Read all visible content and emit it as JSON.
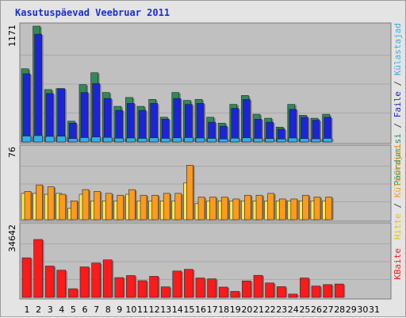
{
  "title": "Kasutuspäevad Veebruar 2011",
  "colors": {
    "background": "#e4e4e4",
    "plot_bg": "#c0c0c0",
    "grid": "#a8a8a8",
    "pages": "#2e8b57",
    "files": "#1c24d8",
    "visits": "#2fb0e8",
    "hits": "#ffe84a",
    "unique_visitors": "#ff9a1c",
    "kbytes": "#ff1a1a",
    "weekend_label": "#2e8b57",
    "title": "#1a2fd0"
  },
  "side_labels": {
    "top": [
      {
        "text": "Pöördumisi",
        "color": "#2e8b57"
      },
      {
        "text": " / ",
        "color": "#444444"
      },
      {
        "text": "Faile",
        "color": "#1c24d8"
      },
      {
        "text": " / ",
        "color": "#444444"
      },
      {
        "text": "Külastajad",
        "color": "#2fb0e8"
      }
    ],
    "middle": [
      {
        "text": "Hitte",
        "color": "#e8c400"
      },
      {
        "text": " / ",
        "color": "#444444"
      },
      {
        "text": "Külastajad",
        "color": "#ff9a1c"
      }
    ],
    "bottom": [
      {
        "text": "KBaite",
        "color": "#ff1a1a"
      }
    ]
  },
  "chart_data": {
    "type": "bar",
    "title": "Kasutuspäevad Veebruar 2011",
    "categories": [
      "1",
      "2",
      "3",
      "4",
      "5",
      "6",
      "7",
      "8",
      "9",
      "10",
      "11",
      "12",
      "13",
      "14",
      "15",
      "16",
      "17",
      "18",
      "19",
      "20",
      "21",
      "22",
      "23",
      "24",
      "25",
      "26",
      "27",
      "28",
      "29",
      "30",
      "31"
    ],
    "weekend_days": [
      "5",
      "6",
      "12",
      "13",
      "19",
      "20",
      "26",
      "27"
    ],
    "panels": [
      {
        "name": "top",
        "ymax": 1171,
        "ymax_label": "1171",
        "series": [
          {
            "name": "Pöördumisi",
            "values": [
              740,
              1171,
              530,
              540,
              210,
              580,
              700,
              500,
              360,
              450,
              360,
              430,
              250,
              500,
              420,
              430,
              250,
              190,
              380,
              470,
              280,
              240,
              150,
              380,
              270,
              240,
              280,
              0,
              0,
              0,
              0
            ]
          },
          {
            "name": "Faile",
            "values": [
              690,
              1090,
              490,
              540,
              190,
              500,
              590,
              440,
              320,
              390,
              320,
              390,
              230,
              440,
              380,
              390,
              200,
              160,
              340,
              430,
              230,
              200,
              130,
              330,
              250,
              220,
              250,
              0,
              0,
              0,
              0
            ]
          },
          {
            "name": "Külastajad",
            "values": [
              60,
              64,
              56,
              58,
              34,
              44,
              50,
              46,
              38,
              40,
              36,
              42,
              36,
              42,
              44,
              40,
              36,
              30,
              38,
              42,
              36,
              34,
              30,
              40,
              34,
              32,
              36,
              0,
              0,
              0,
              0
            ]
          }
        ]
      },
      {
        "name": "middle",
        "ymax": 76,
        "ymax_label": "76",
        "series": [
          {
            "name": "Hitte",
            "values": [
              28,
              28,
              27,
              28,
              12,
              27,
              20,
              20,
              20,
              27,
              20,
              20,
              20,
              20,
              39,
              17,
              20,
              20,
              20,
              20,
              20,
              20,
              20,
              20,
              20,
              20,
              20,
              0,
              0,
              0,
              0
            ]
          },
          {
            "name": "Külastajad",
            "values": [
              30,
              37,
              35,
              27,
              20,
              32,
              30,
              28,
              26,
              32,
              26,
              26,
              28,
              28,
              58,
              24,
              24,
              24,
              22,
              26,
              26,
              28,
              22,
              22,
              26,
              24,
              24,
              0,
              0,
              0,
              0
            ]
          }
        ]
      },
      {
        "name": "bottom",
        "ymax": 34642,
        "ymax_label": "34642",
        "series": [
          {
            "name": "KBaite",
            "values": [
              19200,
              28100,
              15200,
              13200,
              4200,
              14800,
              16700,
              18200,
              9600,
              10600,
              8100,
              10200,
              5100,
              12800,
              13600,
              9400,
              9000,
              5000,
              2900,
              8000,
              10700,
              7000,
              5200,
              1600,
              9400,
              5500,
              6200,
              6500,
              0,
              0,
              0
            ]
          }
        ]
      }
    ]
  }
}
